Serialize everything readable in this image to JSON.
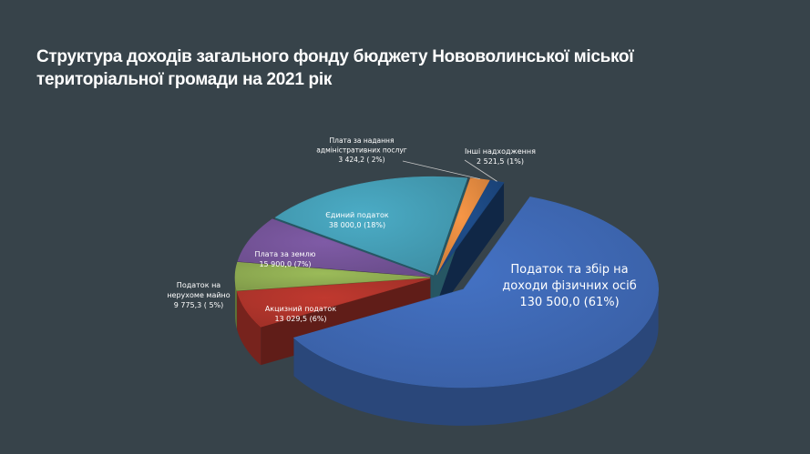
{
  "title": {
    "line1": "Структура доходів загального фонду бюджету Нововолинської міської",
    "line2": "територіальної громади на 2021 рік"
  },
  "colors": {
    "background": "#37434a",
    "title": "#ffffff"
  },
  "chart_data": {
    "type": "pie",
    "style": "3d-exploded",
    "title": "Структура доходів загального фонду бюджету Нововолинської міської територіальної громади на 2021 рік",
    "legend": "none",
    "slices": [
      {
        "label_lines": [
          "Податок та збір на",
          "доходи фізичних осіб"
        ],
        "value": 130500.0,
        "value_text": "130 500,0",
        "percent": 61,
        "percent_text": "(61%)",
        "color": "#4472c4"
      },
      {
        "label_lines": [
          "Акцизний податок"
        ],
        "value": 13029.5,
        "value_text": "13 029,5",
        "percent": 6,
        "percent_text": "(6%)",
        "color": "#c0392f"
      },
      {
        "label_lines": [
          "Податок на",
          "нерухоме майно"
        ],
        "value": 9775.3,
        "value_text": "9 775,3",
        "percent": 5,
        "percent_text": "( 5%)",
        "color": "#9bbb59"
      },
      {
        "label_lines": [
          "Плата за землю"
        ],
        "value": 15900.0,
        "value_text": "15 900,0",
        "percent": 7,
        "percent_text": "(7%)",
        "color": "#7f5ba6"
      },
      {
        "label_lines": [
          "Єдиний податок"
        ],
        "value": 38000.0,
        "value_text": "38 000,0",
        "percent": 18,
        "percent_text": "(18%)",
        "color": "#4bacc6"
      },
      {
        "label_lines": [
          "Плата за надання",
          "адміністративних послуг"
        ],
        "value": 3424.2,
        "value_text": "3 424,2",
        "percent": 2,
        "percent_text": "( 2%)",
        "color": "#f79646"
      },
      {
        "label_lines": [
          "Інші надходження"
        ],
        "value": 2521.5,
        "value_text": "2 521,5",
        "percent": 1,
        "percent_text": "(1%)",
        "color": "#1f4e8c"
      }
    ]
  }
}
